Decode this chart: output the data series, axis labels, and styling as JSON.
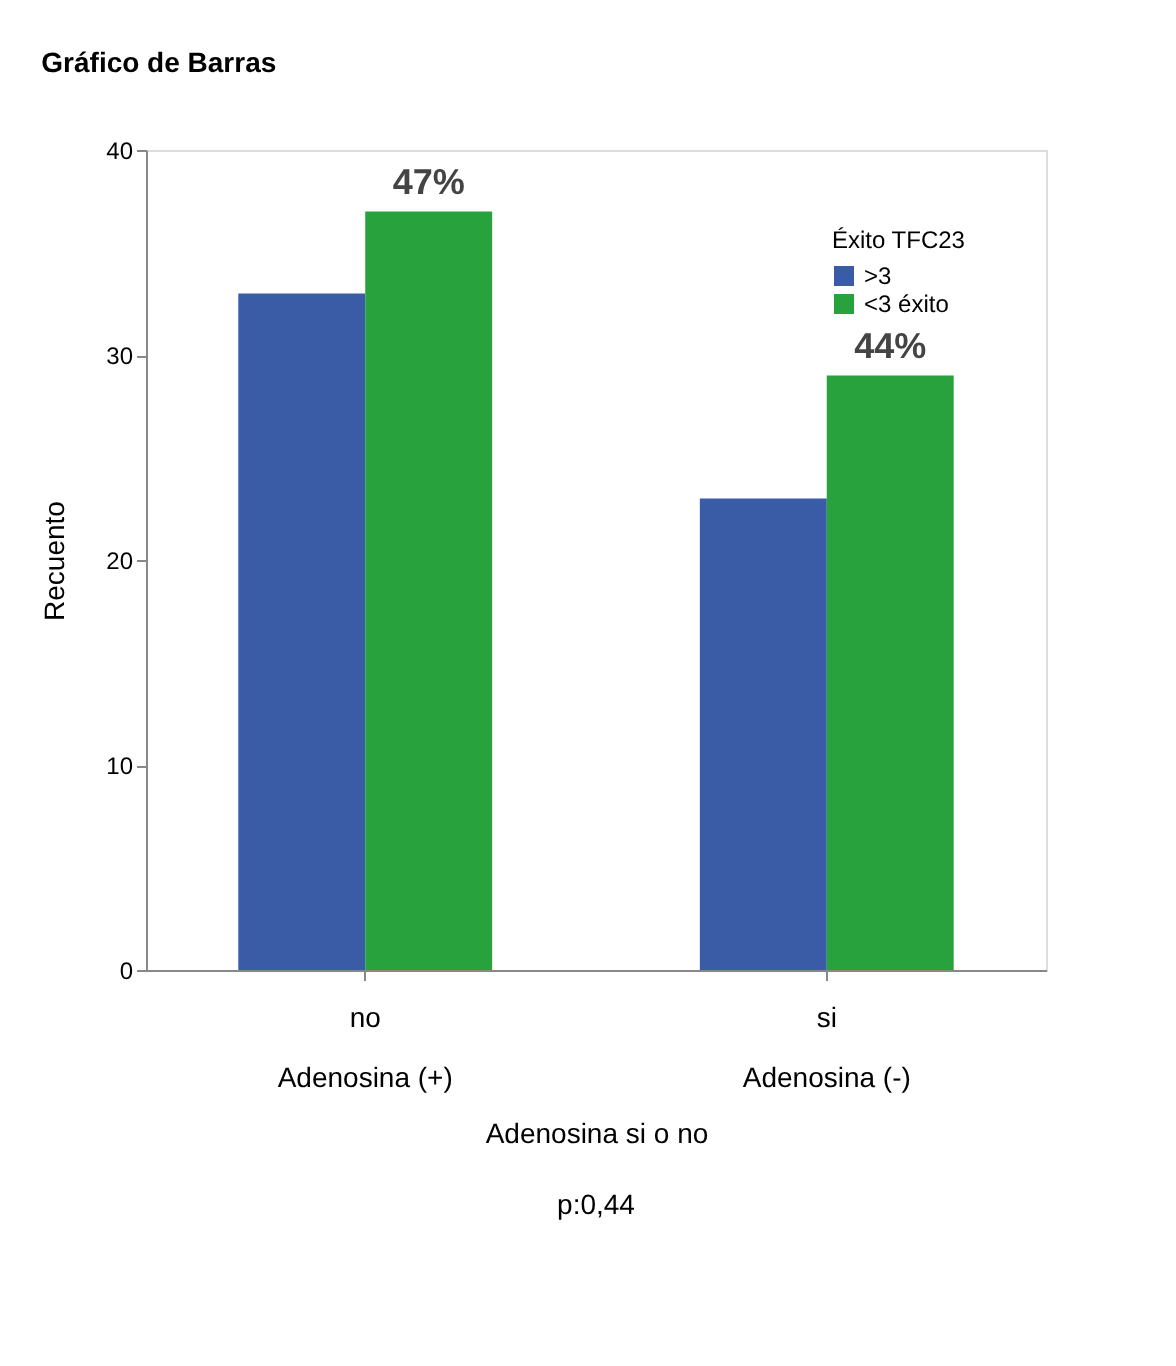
{
  "chart_data": {
    "type": "bar",
    "title": "Gráfico de Barras",
    "xlabel": "Adenosina si o no",
    "ylabel": "Recuento",
    "legend_title": "Éxito TFC23",
    "categories": [
      "no\nAdenosina (+)",
      "si\nAdenosina (-)"
    ],
    "series": [
      {
        "name": ">3",
        "color": "#3a5ba5",
        "values": [
          33,
          23
        ]
      },
      {
        "name": "<3 éxito",
        "color": "#27a23c",
        "values": [
          37,
          29
        ]
      }
    ],
    "ylim": [
      0,
      40
    ],
    "yticks": [
      0,
      10,
      20,
      30,
      40
    ],
    "grid": false,
    "legend": "top right",
    "annotations": [
      {
        "text": "47%",
        "x": "no\nAdenosina (+)",
        "y": 37
      },
      {
        "text": "44%",
        "x": "si\nAdenosina (-)",
        "y": 29
      },
      "p:0,44"
    ]
  }
}
